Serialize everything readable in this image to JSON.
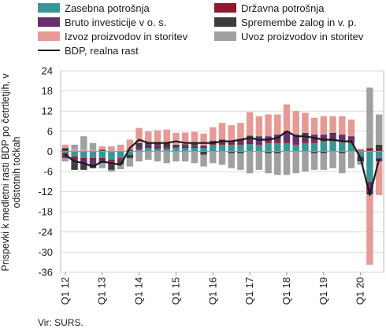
{
  "chart_data": {
    "type": "bar",
    "stacked": true,
    "ylabel": "Prispevki k medletni rasti BDP po četrtletjih, v odstotnih točkah",
    "ylim": [
      -36,
      24
    ],
    "yticks": [
      24,
      18,
      12,
      6,
      0,
      -6,
      -12,
      -18,
      -24,
      -30,
      -36
    ],
    "grid": true,
    "legend_position": "top",
    "categories": [
      "Q1 12",
      "Q2 12",
      "Q3 12",
      "Q4 12",
      "Q1 13",
      "Q2 13",
      "Q3 13",
      "Q4 13",
      "Q1 14",
      "Q2 14",
      "Q3 14",
      "Q4 14",
      "Q1 15",
      "Q2 15",
      "Q3 15",
      "Q4 15",
      "Q1 16",
      "Q2 16",
      "Q3 16",
      "Q4 16",
      "Q1 17",
      "Q2 17",
      "Q3 17",
      "Q4 17",
      "Q1 18",
      "Q2 18",
      "Q3 18",
      "Q4 18",
      "Q1 19",
      "Q2 19",
      "Q3 19",
      "Q4 19",
      "Q1 20",
      "Q2 20",
      "Q3 20"
    ],
    "tick_labels": [
      "Q1 12",
      "Q1 13",
      "Q1 14",
      "Q1 15",
      "Q1 16",
      "Q1 17",
      "Q1 18",
      "Q1 19",
      "Q1 20"
    ],
    "series": [
      {
        "name": "Zasebna potrošnja",
        "color": "#3a9598",
        "values": [
          -0.5,
          -1.5,
          -2,
          -2,
          -2,
          -2.5,
          -2,
          -1,
          0.5,
          1,
          0.8,
          0.8,
          1,
          1,
          1,
          1,
          2,
          2,
          2,
          2,
          2.2,
          2,
          2.5,
          2.5,
          2.5,
          2,
          2.5,
          2.5,
          3,
          3,
          3,
          2.5,
          -1.5,
          -9,
          -2
        ]
      },
      {
        "name": "Državna potrošnja",
        "color": "#8b1a2b",
        "values": [
          -0.5,
          -0.5,
          -0.5,
          -0.5,
          -0.5,
          -0.5,
          -0.3,
          0,
          0,
          0,
          0,
          0.2,
          0.2,
          0.3,
          0.3,
          0.3,
          0.5,
          0.5,
          0.5,
          0.5,
          0.5,
          0.5,
          0.5,
          0.5,
          0.5,
          0.5,
          0.5,
          0.5,
          0.5,
          0.5,
          0.5,
          0.5,
          0.3,
          1,
          0.8
        ]
      },
      {
        "name": "Bruto investicije v o. s.",
        "color": "#6b2c6e",
        "values": [
          -1,
          -1.5,
          -1.5,
          -1,
          -1,
          -1,
          -0.5,
          0.5,
          1,
          1,
          1,
          0.5,
          0.3,
          0.3,
          0.5,
          0.5,
          0.2,
          0.5,
          0.8,
          1,
          1.5,
          1.5,
          1.5,
          2,
          2.5,
          2,
          2,
          2,
          1.5,
          1.5,
          1.5,
          1,
          -0.5,
          -3,
          -1
        ]
      },
      {
        "name": "Spremembe zalog in v. p.",
        "color": "#3d3d3d",
        "values": [
          1,
          -2,
          -1.5,
          -1.5,
          0.5,
          -1.5,
          -1,
          -1,
          1,
          0.5,
          1,
          1,
          0.5,
          0.5,
          0.5,
          -1,
          0.5,
          0.5,
          -0.5,
          -0.5,
          0.5,
          0.5,
          -0.5,
          -0.5,
          0.5,
          0.5,
          0.5,
          -0.5,
          -0.5,
          0.5,
          -0.5,
          0.5,
          -1,
          -0.8,
          1.2
        ]
      },
      {
        "name": "Izvoz proizvodov in storitev",
        "color": "#e59a96",
        "values": [
          1,
          0.5,
          0.5,
          0.5,
          1,
          1.5,
          2,
          3,
          4.5,
          3.5,
          3.5,
          4,
          3.5,
          3.5,
          3.5,
          3.5,
          4,
          5,
          4.5,
          5,
          7,
          6,
          6.5,
          6,
          8,
          7,
          6,
          5,
          5.5,
          5,
          5.5,
          5,
          0.5,
          -21,
          -10
        ]
      },
      {
        "name": "Uvoz proizvodov in storitev",
        "color": "#a0a0a0",
        "values": [
          -1,
          1.5,
          4,
          2,
          -1.5,
          -0.5,
          -1.5,
          -2.5,
          -3,
          -2.5,
          -3,
          -3.5,
          -3,
          -3,
          -3.5,
          -3.5,
          -3.5,
          -4,
          -4.5,
          -5,
          -6.5,
          -5.5,
          -6,
          -6.5,
          -7,
          -6.5,
          -6,
          -5,
          -5,
          -5,
          -6,
          -5,
          -1,
          18,
          9
        ]
      },
      {
        "name": "BDP, realna rast",
        "color": "#1a1a1a",
        "type": "line",
        "values": [
          -1,
          -3,
          -3.5,
          -4.5,
          -3,
          -3.5,
          -4,
          1,
          3.5,
          2.5,
          2.5,
          2.5,
          3,
          2.5,
          2.5,
          2.5,
          2.5,
          3,
          3,
          3.5,
          4,
          3.5,
          3.5,
          4,
          6,
          4.5,
          4.5,
          4,
          3.5,
          3.5,
          3,
          3,
          -2,
          -13,
          -2.5
        ]
      }
    ]
  },
  "source": "Vir: SURS."
}
